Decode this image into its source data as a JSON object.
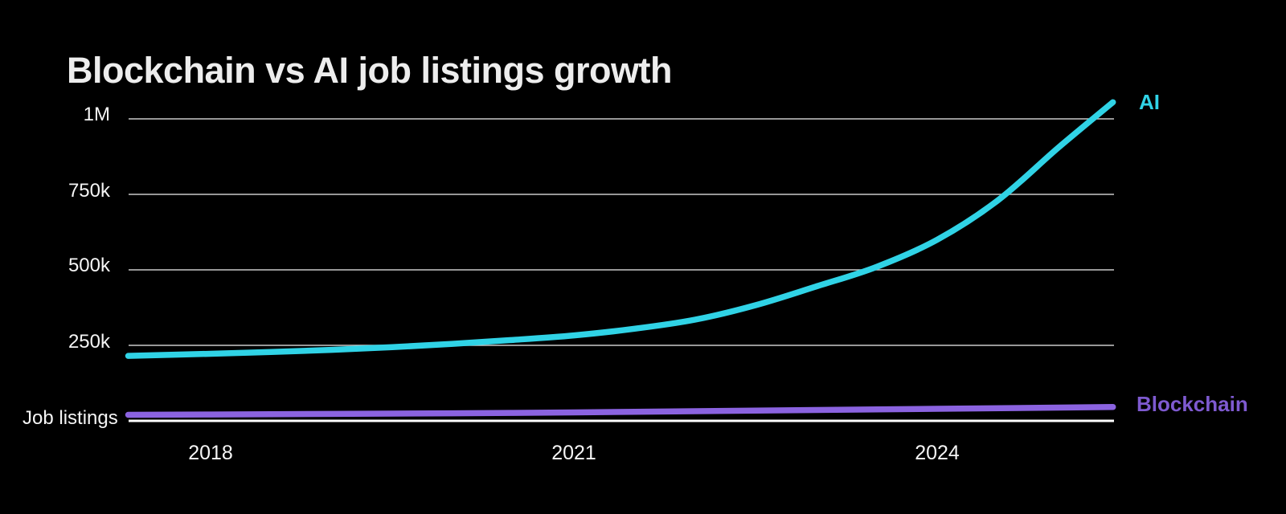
{
  "chart_data": {
    "type": "line",
    "title": "Blockchain vs AI job listings growth",
    "background_color": "#000000",
    "grid_color": "#c9c9c9",
    "baseline_color": "#ffffff",
    "y_axis": {
      "label": "Job listings",
      "range_thousands": [
        0,
        1060
      ],
      "ticks": [
        {
          "label": "1M",
          "value_thousands": 1000
        },
        {
          "label": "750k",
          "value_thousands": 750
        },
        {
          "label": "500k",
          "value_thousands": 500
        },
        {
          "label": "250k",
          "value_thousands": 250
        }
      ],
      "gridlines": true
    },
    "x_axis": {
      "range_years": [
        2017.32,
        2025.45
      ],
      "ticks": [
        {
          "label": "2018",
          "year": 2018
        },
        {
          "label": "2021",
          "year": 2021
        },
        {
          "label": "2024",
          "year": 2024
        }
      ]
    },
    "legend_position": "right of line ends",
    "series": [
      {
        "name": "AI",
        "color": "#30d3e6",
        "label_color": "#30d3e6",
        "points_year_thousands": [
          [
            2017.32,
            215
          ],
          [
            2018,
            222
          ],
          [
            2018.5,
            228
          ],
          [
            2019,
            235
          ],
          [
            2019.5,
            244
          ],
          [
            2020,
            255
          ],
          [
            2020.5,
            268
          ],
          [
            2021,
            283
          ],
          [
            2021.5,
            305
          ],
          [
            2022,
            335
          ],
          [
            2022.5,
            383
          ],
          [
            2023,
            445
          ],
          [
            2023.5,
            510
          ],
          [
            2024,
            600
          ],
          [
            2024.5,
            730
          ],
          [
            2025,
            905
          ],
          [
            2025.45,
            1055
          ]
        ]
      },
      {
        "name": "Blockchain",
        "color": "#8b63e0",
        "label_color": "#7e5ad0",
        "points_year_thousands": [
          [
            2017.32,
            20
          ],
          [
            2018,
            21
          ],
          [
            2019,
            23
          ],
          [
            2020,
            25
          ],
          [
            2021,
            28
          ],
          [
            2022,
            32
          ],
          [
            2023,
            36
          ],
          [
            2024,
            40
          ],
          [
            2025,
            44
          ],
          [
            2025.45,
            46
          ]
        ]
      }
    ]
  }
}
